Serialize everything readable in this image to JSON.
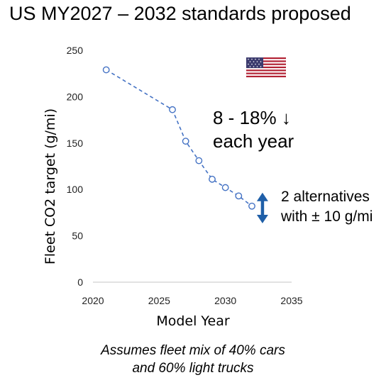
{
  "title": "US MY2027 – 2032 standards proposed",
  "annotations": {
    "rate_line1": "8 - 18% ↓",
    "rate_line2": "each year",
    "alt_line1": "2 alternatives",
    "alt_line2": "with ± 10 g/mi"
  },
  "footnote": {
    "line1": "Assumes fleet mix of 40% cars",
    "line2": "and 60% light trucks"
  },
  "flag": "us-flag-icon",
  "colors": {
    "series": "#4472C4",
    "arrow": "#1F5FA8",
    "axis": "#D9D9D9"
  },
  "chart_data": {
    "type": "line",
    "title": "",
    "xlabel": "Model Year",
    "ylabel": "Fleet CO2 target (g/mi)",
    "xlim": [
      2020,
      2035
    ],
    "ylim": [
      0,
      250
    ],
    "xticks": [
      2020,
      2025,
      2030,
      2035
    ],
    "yticks": [
      0,
      50,
      100,
      150,
      200,
      250
    ],
    "grid": false,
    "line_style": "dashed",
    "marker": "open-circle",
    "series": [
      {
        "x": [
          2021,
          2026,
          2027,
          2028,
          2029,
          2030,
          2031,
          2032
        ],
        "y": [
          229,
          186,
          152,
          131,
          111,
          102,
          93,
          82
        ]
      }
    ],
    "range_marker": {
      "x": 2032.8,
      "y_from": 65,
      "y_to": 95
    }
  }
}
